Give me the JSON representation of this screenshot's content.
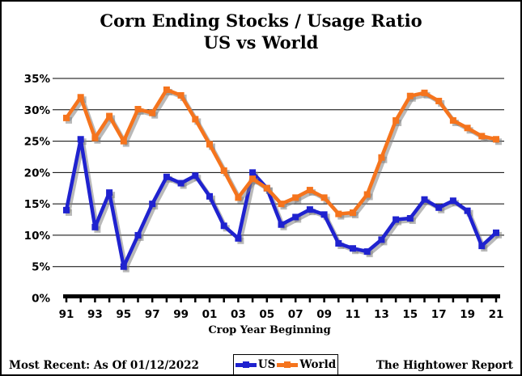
{
  "title": {
    "line1": "Corn Ending Stocks / Usage Ratio",
    "line2": "US vs World"
  },
  "footer": {
    "most_recent": "Most Recent: As Of 01/12/2022",
    "source": "The Hightower Report"
  },
  "legend": {
    "items": [
      {
        "label": "US",
        "color": "#1f22cf"
      },
      {
        "label": "World",
        "color": "#f5741d"
      }
    ]
  },
  "chart_data": {
    "type": "line",
    "title": "Corn Ending Stocks / Usage Ratio US vs World",
    "xlabel": "Crop Year Beginning",
    "ylabel": "",
    "ylim": [
      0,
      35
    ],
    "ytick_step": 5,
    "ytick_labels": [
      "0%",
      "5%",
      "10%",
      "15%",
      "20%",
      "25%",
      "30%",
      "35%"
    ],
    "grid": true,
    "legend_position": "bottom-center",
    "x": [
      "91",
      "92",
      "93",
      "94",
      "95",
      "96",
      "97",
      "98",
      "99",
      "00",
      "01",
      "02",
      "03",
      "04",
      "05",
      "06",
      "07",
      "08",
      "09",
      "10",
      "11",
      "12",
      "13",
      "14",
      "15",
      "16",
      "17",
      "18",
      "19",
      "20",
      "21"
    ],
    "x_labeled_ticks": [
      "91",
      "93",
      "95",
      "97",
      "99",
      "01",
      "03",
      "05",
      "07",
      "09",
      "11",
      "13",
      "15",
      "17",
      "19",
      "21"
    ],
    "series": [
      {
        "name": "US",
        "color": "#1f22cf",
        "values": [
          14.0,
          25.3,
          11.3,
          16.8,
          5.0,
          10.0,
          15.0,
          19.3,
          18.3,
          19.5,
          16.2,
          11.5,
          9.5,
          20.0,
          17.5,
          11.7,
          12.9,
          14.1,
          13.3,
          8.7,
          7.9,
          7.4,
          9.3,
          12.5,
          12.7,
          15.7,
          14.4,
          15.5,
          13.9,
          8.3,
          10.4
        ]
      },
      {
        "name": "World",
        "color": "#f5741d",
        "values": [
          28.7,
          32.0,
          25.5,
          29.0,
          25.0,
          30.1,
          29.5,
          33.2,
          32.3,
          28.5,
          24.5,
          20.3,
          16.0,
          19.0,
          17.5,
          15.0,
          16.0,
          17.2,
          16.0,
          13.4,
          13.6,
          16.5,
          22.4,
          28.3,
          32.2,
          32.7,
          31.4,
          28.3,
          27.1,
          25.8,
          25.3
        ]
      }
    ]
  }
}
